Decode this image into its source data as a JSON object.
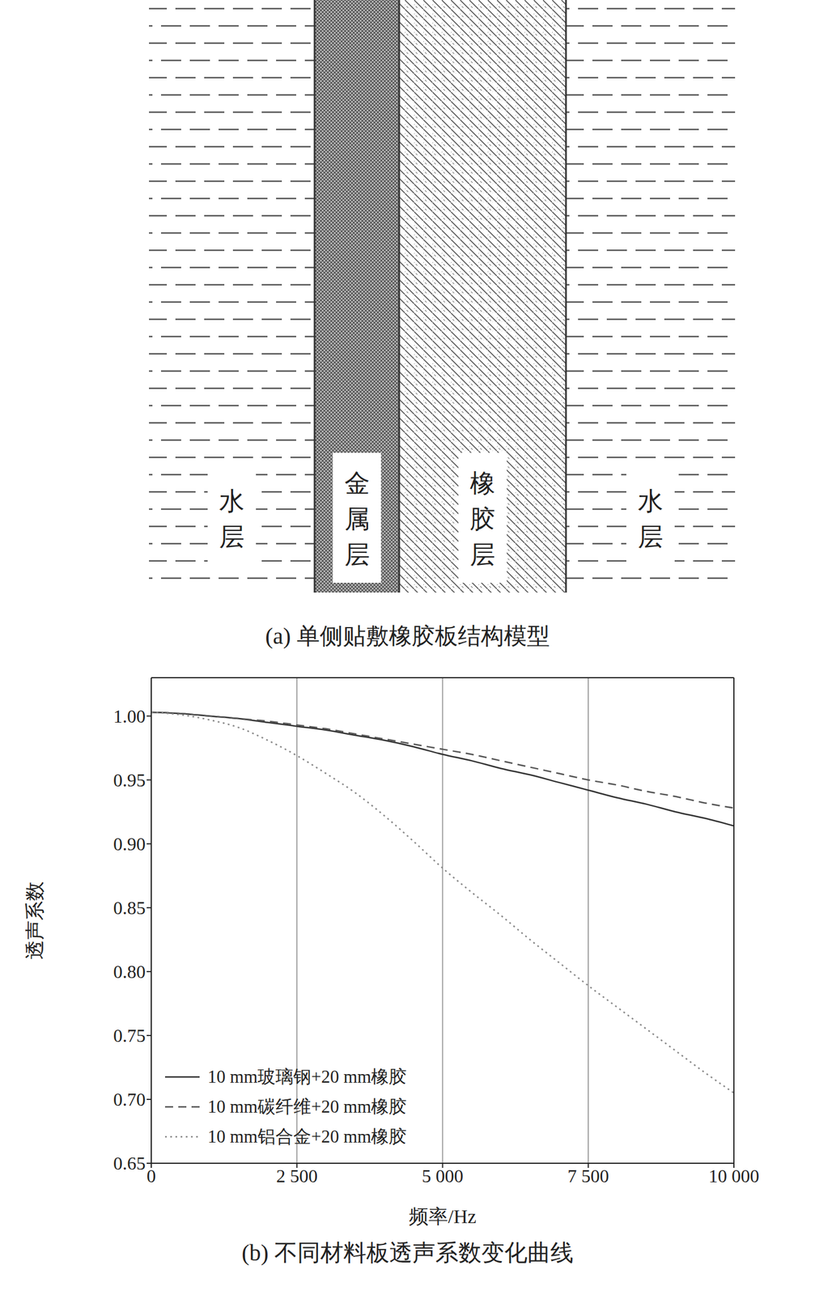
{
  "diagram": {
    "layers": [
      "水层",
      "金属层",
      "橡胶层",
      "水层"
    ],
    "caption": "(a) 单侧贴敷橡胶板结构模型"
  },
  "chart_data": {
    "type": "line",
    "title": "(b) 不同材料板透声系数变化曲线",
    "x_label": "频率/Hz",
    "y_label": "透声系数",
    "x": [
      0,
      500,
      1000,
      1500,
      2000,
      2500,
      3000,
      3500,
      4000,
      4500,
      5000,
      5500,
      6000,
      6500,
      7000,
      7500,
      8000,
      8500,
      9000,
      9500,
      10000
    ],
    "series": [
      {
        "name": "10 mm玻璃钢+20 mm橡胶",
        "color": "#333333",
        "line_style": "solid",
        "values": [
          1.003,
          1.002,
          1.0,
          0.998,
          0.995,
          0.992,
          0.989,
          0.985,
          0.981,
          0.976,
          0.97,
          0.965,
          0.959,
          0.954,
          0.948,
          0.942,
          0.936,
          0.931,
          0.925,
          0.92,
          0.914
        ]
      },
      {
        "name": "10 mm碳纤维+20 mm橡胶",
        "color": "#555555",
        "line_style": "dashed",
        "values": [
          1.003,
          1.002,
          1.0,
          0.998,
          0.996,
          0.993,
          0.99,
          0.986,
          0.982,
          0.978,
          0.974,
          0.97,
          0.965,
          0.96,
          0.955,
          0.95,
          0.946,
          0.941,
          0.937,
          0.932,
          0.928
        ]
      },
      {
        "name": "10 mm铝合金+20 mm橡胶",
        "color": "#888888",
        "line_style": "dotted",
        "values": [
          1.003,
          1.001,
          0.997,
          0.991,
          0.981,
          0.969,
          0.955,
          0.94,
          0.922,
          0.902,
          0.881,
          0.862,
          0.844,
          0.825,
          0.807,
          0.789,
          0.772,
          0.755,
          0.738,
          0.721,
          0.705
        ]
      }
    ],
    "xlim": [
      0,
      10000
    ],
    "ylim": [
      0.65,
      1.03
    ],
    "xticks": [
      0,
      {
        "value": 2500,
        "label": "2 500"
      },
      {
        "value": 5000,
        "label": "5 000"
      },
      {
        "value": 7500,
        "label": "7 500"
      },
      {
        "value": 10000,
        "label": "10 000"
      }
    ],
    "yticks": [
      {
        "value": 0.65,
        "label": "0.65"
      },
      {
        "value": 0.7,
        "label": "0.70"
      },
      {
        "value": 0.75,
        "label": "0.75"
      },
      {
        "value": 0.8,
        "label": "0.80"
      },
      {
        "value": 0.85,
        "label": "0.85"
      },
      {
        "value": 0.9,
        "label": "0.90"
      },
      {
        "value": 0.95,
        "label": "0.95"
      },
      {
        "value": 1,
        "label": "1.00"
      }
    ],
    "grid": true,
    "legend": "lower left"
  }
}
